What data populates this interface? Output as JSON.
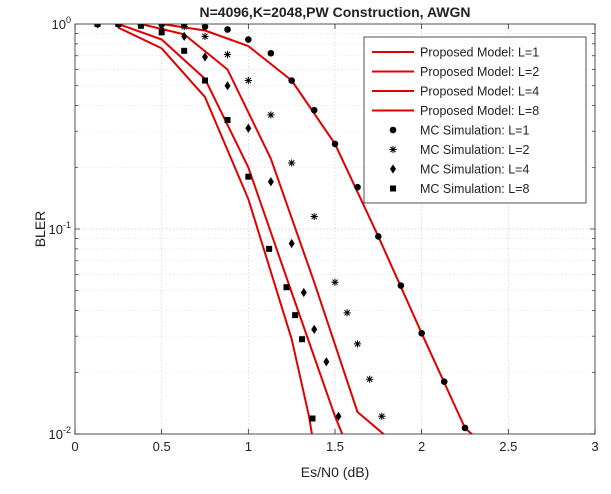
{
  "chart_data": {
    "type": "line",
    "title": "N=4096,K=2048,PW Construction, AWGN",
    "xlabel": "Es/N0 (dB)",
    "ylabel": "BLER",
    "xlim": [
      0,
      3
    ],
    "ylim": [
      0.01,
      1
    ],
    "yscale": "log",
    "grid": true,
    "legend_placement": "top-right",
    "x_ticks": [
      0,
      0.5,
      1,
      1.5,
      2,
      2.5,
      3
    ],
    "x_tick_labels": [
      "0",
      "0.5",
      "1",
      "1.5",
      "2",
      "2.5",
      "3"
    ],
    "y_tick_labels": [
      {
        "value": 1,
        "base": "10",
        "exp": "0"
      },
      {
        "value": 0.1,
        "base": "10",
        "exp": "-1"
      },
      {
        "value": 0.01,
        "base": "10",
        "exp": "-2"
      }
    ],
    "series": [
      {
        "name": "Proposed Model: L=1",
        "kind": "line",
        "color": "#e00000",
        "x": [
          0.5,
          0.75,
          1.0,
          1.25,
          1.5,
          1.75,
          2.0,
          2.25,
          2.3
        ],
        "y": [
          1.0,
          0.93,
          0.78,
          0.53,
          0.26,
          0.092,
          0.031,
          0.0107,
          0.0098
        ]
      },
      {
        "name": "Proposed Model: L=2",
        "kind": "line",
        "color": "#e00000",
        "x": [
          0.38,
          0.63,
          0.88,
          1.13,
          1.38,
          1.63,
          1.78,
          1.8
        ],
        "y": [
          1.0,
          0.89,
          0.6,
          0.22,
          0.055,
          0.0128,
          0.01,
          0.0096
        ]
      },
      {
        "name": "Proposed Model: L=4",
        "kind": "line",
        "color": "#e00000",
        "x": [
          0.25,
          0.5,
          0.75,
          1.0,
          1.25,
          1.5,
          1.55
        ],
        "y": [
          1.0,
          0.84,
          0.54,
          0.2,
          0.049,
          0.0122,
          0.0096
        ]
      },
      {
        "name": "Proposed Model: L=8",
        "kind": "line",
        "color": "#e00000",
        "x": [
          0.25,
          0.5,
          0.75,
          1.0,
          1.25,
          1.35,
          1.37
        ],
        "y": [
          0.96,
          0.76,
          0.44,
          0.14,
          0.029,
          0.0122,
          0.0096
        ]
      },
      {
        "name": "MC Simulation: L=1",
        "kind": "marker",
        "marker": "circle",
        "color": "#000000",
        "x": [
          0.13,
          0.25,
          0.38,
          0.5,
          0.63,
          0.75,
          0.88,
          1.0,
          1.13,
          1.25,
          1.38,
          1.5,
          1.63,
          1.75,
          1.88,
          2.0,
          2.13,
          2.25
        ],
        "y": [
          1.0,
          1.0,
          1.0,
          1.0,
          1.0,
          0.97,
          0.94,
          0.84,
          0.72,
          0.53,
          0.38,
          0.26,
          0.16,
          0.092,
          0.053,
          0.031,
          0.018,
          0.0107
        ]
      },
      {
        "name": "MC Simulation: L=2",
        "kind": "marker",
        "marker": "asterisk",
        "color": "#000000",
        "x": [
          0.13,
          0.25,
          0.38,
          0.5,
          0.63,
          0.75,
          0.88,
          1.0,
          1.13,
          1.25,
          1.38,
          1.5,
          1.57,
          1.63,
          1.7,
          1.77
        ],
        "y": [
          1.0,
          1.0,
          1.0,
          1.0,
          0.97,
          0.87,
          0.71,
          0.53,
          0.36,
          0.21,
          0.115,
          0.055,
          0.039,
          0.0275,
          0.0185,
          0.0122
        ]
      },
      {
        "name": "MC Simulation: L=4",
        "kind": "marker",
        "marker": "diamond",
        "color": "#000000",
        "x": [
          0.13,
          0.25,
          0.38,
          0.5,
          0.63,
          0.75,
          0.88,
          1.0,
          1.13,
          1.25,
          1.32,
          1.38,
          1.45,
          1.52
        ],
        "y": [
          1.0,
          1.0,
          1.0,
          0.94,
          0.87,
          0.69,
          0.5,
          0.31,
          0.17,
          0.085,
          0.049,
          0.0324,
          0.0225,
          0.0122
        ]
      },
      {
        "name": "MC Simulation: L=8",
        "kind": "marker",
        "marker": "square",
        "color": "#000000",
        "x": [
          0.13,
          0.25,
          0.38,
          0.5,
          0.63,
          0.75,
          0.88,
          1.0,
          1.12,
          1.22,
          1.27,
          1.31,
          1.37
        ],
        "y": [
          1.0,
          1.0,
          0.98,
          0.91,
          0.74,
          0.53,
          0.34,
          0.18,
          0.08,
          0.052,
          0.038,
          0.029,
          0.0119
        ]
      }
    ]
  }
}
